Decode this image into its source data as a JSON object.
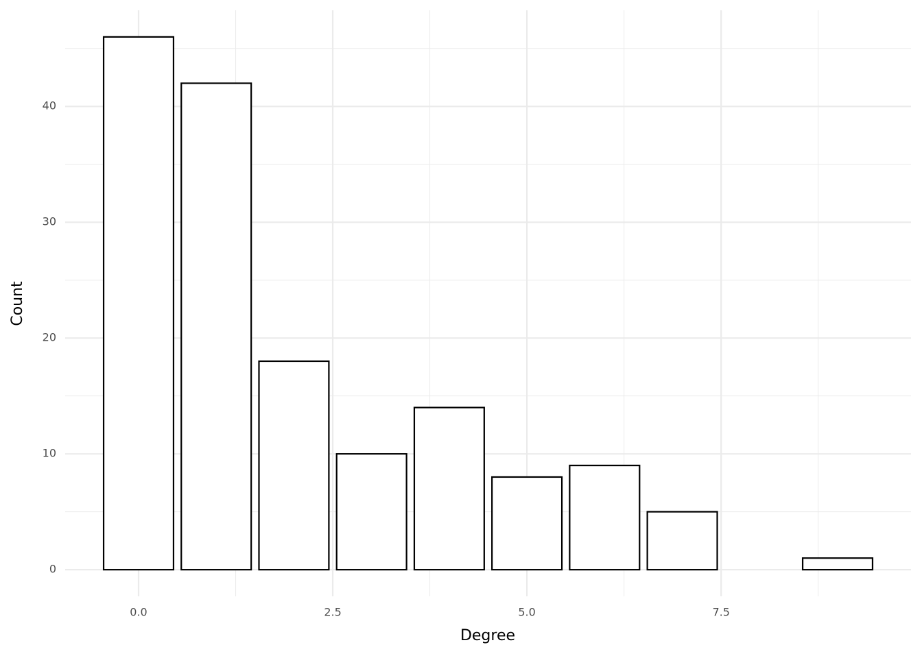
{
  "chart_data": {
    "type": "bar",
    "x_label": "Degree",
    "y_label": "Count",
    "x": [
      0,
      1,
      2,
      3,
      4,
      5,
      6,
      7,
      9
    ],
    "values": [
      46,
      42,
      18,
      10,
      14,
      8,
      9,
      5,
      1
    ],
    "fill": "#ffffff",
    "color": "#000000",
    "xlim": [
      -0.945,
      9.945
    ],
    "ylim": [
      -2.3,
      48.3
    ],
    "xticks": [
      {
        "value": 0,
        "label": "0.0"
      },
      {
        "value": 2.5,
        "label": "2.5"
      },
      {
        "value": 5,
        "label": "5.0"
      },
      {
        "value": 7.5,
        "label": "7.5"
      }
    ],
    "yticks": [
      0,
      10,
      20,
      30,
      40
    ],
    "x_minor_ticks": [
      1.25,
      3.75,
      6.25,
      8.75
    ],
    "y_minor_ticks": [
      5,
      15,
      25,
      35,
      45
    ],
    "grid": true
  }
}
